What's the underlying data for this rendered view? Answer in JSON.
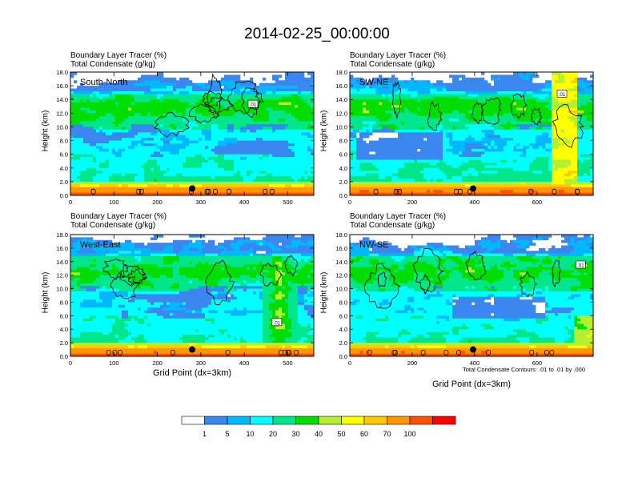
{
  "title": "2014-02-25_00:00:00",
  "subtitle_line1": "Boundary Layer Tracer   (%)",
  "subtitle_line2": "Total Condensate   (g/kg)",
  "contour_note": "Total Condensate Contours: .01 to .01 by .000",
  "colorbar": {
    "levels": [
      "1",
      "5",
      "10",
      "20",
      "30",
      "40",
      "50",
      "60",
      "70",
      "100"
    ],
    "colors": [
      "#ffffff",
      "#3a87f0",
      "#00b8ff",
      "#00ffff",
      "#00e68a",
      "#00dd00",
      "#b4f030",
      "#ffff00",
      "#ffc800",
      "#ff9600",
      "#ff5000",
      "#ff0000"
    ]
  },
  "chart_data": [
    {
      "type": "heatmap",
      "label": "South-North",
      "ylabel": "Height (km)",
      "xlabel": "",
      "xlim": [
        0,
        560
      ],
      "ylim": [
        0,
        18
      ],
      "xticks": [
        "0",
        "100",
        "200",
        "300",
        "400",
        "500"
      ],
      "yticks": [
        "0.0",
        "2.0",
        "4.0",
        "6.0",
        "8.0",
        "10.0",
        "12.0",
        "14.0",
        "16.0",
        "18.0"
      ],
      "contour_label": ".01",
      "contour_label_pos": [
        420,
        13.3
      ],
      "marker": [
        280,
        1.0
      ]
    },
    {
      "type": "heatmap",
      "label": "SW-NE",
      "ylabel": "Height (km)",
      "xlabel": "",
      "xlim": [
        0,
        780
      ],
      "ylim": [
        0,
        18
      ],
      "xticks": [
        "0",
        "200",
        "400",
        "600"
      ],
      "yticks": [
        "0.0",
        "2.0",
        "4.0",
        "6.0",
        "8.0",
        "10.0",
        "12.0",
        "14.0",
        "16.0",
        "18.0"
      ],
      "contour_label": ".01",
      "contour_label_pos": [
        680,
        14.8
      ],
      "marker": [
        395,
        1.0
      ]
    },
    {
      "type": "heatmap",
      "label": "West-East",
      "ylabel": "Height (km)",
      "xlabel": "Grid Point (dx=3km)",
      "xlim": [
        0,
        560
      ],
      "ylim": [
        0,
        18
      ],
      "xticks": [
        "0",
        "100",
        "200",
        "300",
        "400",
        "500"
      ],
      "yticks": [
        "0.0",
        "2.0",
        "4.0",
        "6.0",
        "8.0",
        "10.0",
        "12.0",
        "14.0",
        "16.0",
        "18.0"
      ],
      "contour_label": ".01",
      "contour_label_pos": [
        475,
        5.0
      ],
      "marker": [
        280,
        1.0
      ]
    },
    {
      "type": "heatmap",
      "label": "NW-SE",
      "ylabel": "Height (km)",
      "xlabel": "Grid Point (dx=3km)",
      "xlim": [
        0,
        780
      ],
      "ylim": [
        0,
        18
      ],
      "xticks": [
        "0",
        "200",
        "400",
        "600"
      ],
      "yticks": [
        "0.0",
        "2.0",
        "4.0",
        "6.0",
        "8.0",
        "10.0",
        "12.0",
        "14.0",
        "16.0",
        "18.0"
      ],
      "contour_label": ".01",
      "contour_label_pos": [
        740,
        13.5
      ],
      "marker": [
        395,
        1.0
      ]
    }
  ]
}
